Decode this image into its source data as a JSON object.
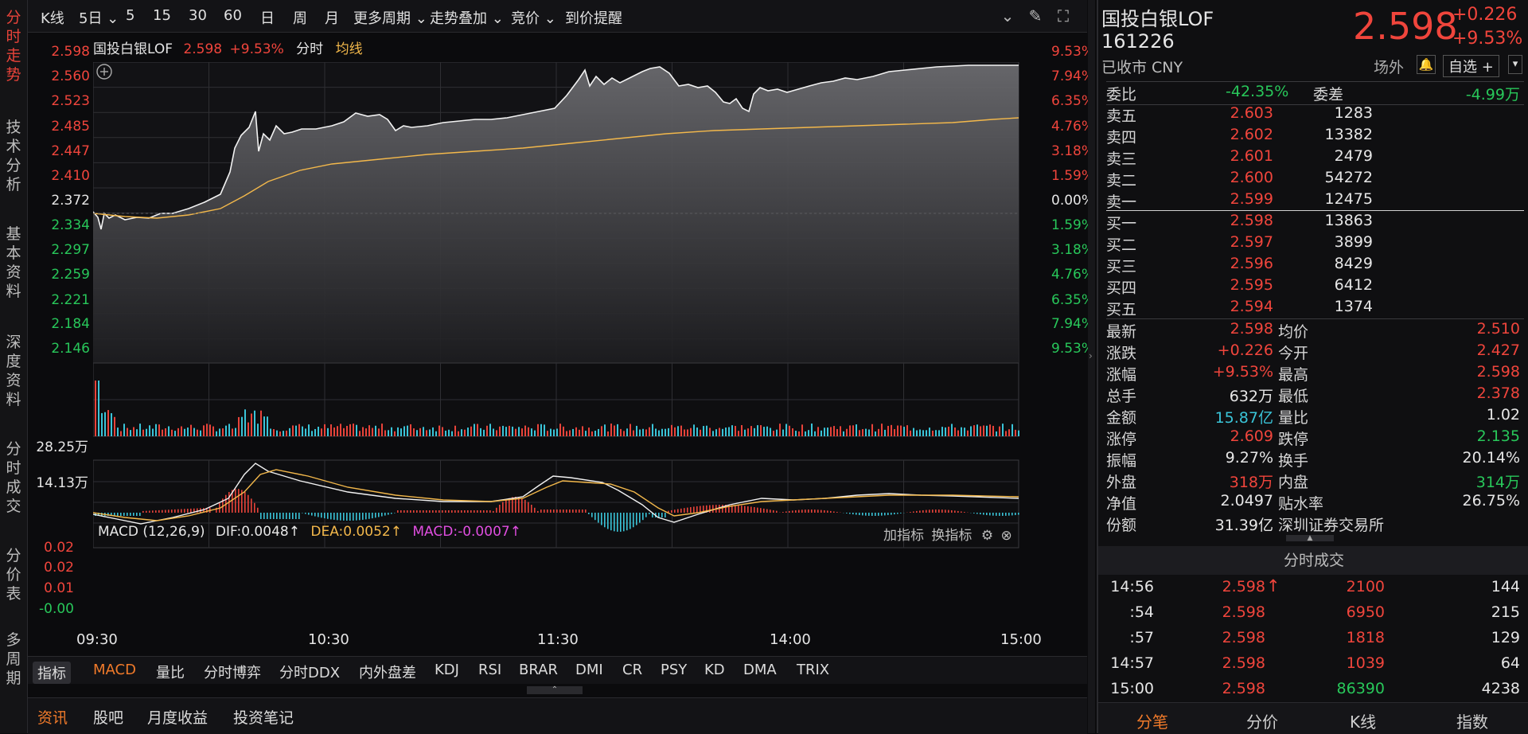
{
  "left_nav": [
    {
      "label": "分\n时\n走\n势",
      "active": true
    },
    {
      "label": "技\n术\n分\n析",
      "active": false
    },
    {
      "label": "基\n本\n资\n料",
      "active": false
    },
    {
      "label": "深\n度\n资\n料",
      "active": false
    },
    {
      "label": "分\n时\n成\n交",
      "active": false
    },
    {
      "label": "分\n价\n表",
      "active": false
    },
    {
      "label": "多\n周\n期",
      "active": false
    }
  ],
  "toolbar": {
    "items": [
      "K线",
      "5日",
      "5",
      "15",
      "30",
      "60",
      "日",
      "周",
      "月",
      "更多周期",
      "走势叠加",
      "竞价",
      "到价提醒"
    ]
  },
  "chart_header": {
    "name": "国投白银LOF",
    "price": "2.598",
    "change_pct": "+9.53%",
    "mode": "分时",
    "avg_label": "均线"
  },
  "price_axis": {
    "left": [
      "2.598",
      "2.560",
      "2.523",
      "2.485",
      "2.447",
      "2.410",
      "2.372",
      "2.334",
      "2.297",
      "2.259",
      "2.221",
      "2.184",
      "2.146"
    ],
    "right": [
      "9.53%",
      "7.94%",
      "6.35%",
      "4.76%",
      "3.18%",
      "1.59%",
      "0.00%",
      "1.59%",
      "3.18%",
      "4.76%",
      "6.35%",
      "7.94%",
      "9.53%"
    ]
  },
  "volume_axis": [
    "28.25万",
    "14.13万"
  ],
  "macd_header": {
    "label": "MACD (12,26,9)",
    "dif": "DIF:0.0048",
    "dea": "DEA:0.0052",
    "macd": "MACD:-0.0007",
    "add": "加指标",
    "swap": "换指标"
  },
  "macd_axis": [
    "0.02",
    "0.02",
    "0.01",
    "-0.00"
  ],
  "time_axis": [
    "09:30",
    "10:30",
    "11:30",
    "14:00",
    "15:00"
  ],
  "indicators": [
    "指标",
    "MACD",
    "量比",
    "分时博弈",
    "分时DDX",
    "内外盘差",
    "KDJ",
    "RSI",
    "BRAR",
    "DMI",
    "CR",
    "PSY",
    "KD",
    "DMA",
    "TRIX"
  ],
  "news_tabs": [
    "资讯",
    "股吧",
    "月度收益",
    "投资笔记"
  ],
  "quote": {
    "name": "国投白银LOF",
    "code": "161226",
    "status": "已收市 CNY",
    "price": "2.598",
    "change": "+0.226",
    "change_pct": "+9.53%",
    "market": "场外",
    "watch": "自选 +"
  },
  "order_book": {
    "weibi_label": "委比",
    "weibi": "-42.35%",
    "weicha_label": "委差",
    "weicha": "-4.99万",
    "asks": [
      {
        "label": "卖五",
        "price": "2.603",
        "vol": "1283"
      },
      {
        "label": "卖四",
        "price": "2.602",
        "vol": "13382"
      },
      {
        "label": "卖三",
        "price": "2.601",
        "vol": "2479"
      },
      {
        "label": "卖二",
        "price": "2.600",
        "vol": "54272"
      },
      {
        "label": "卖一",
        "price": "2.599",
        "vol": "12475"
      }
    ],
    "bids": [
      {
        "label": "买一",
        "price": "2.598",
        "vol": "13863"
      },
      {
        "label": "买二",
        "price": "2.597",
        "vol": "3899"
      },
      {
        "label": "买三",
        "price": "2.596",
        "vol": "8429"
      },
      {
        "label": "买四",
        "price": "2.595",
        "vol": "6412"
      },
      {
        "label": "买五",
        "price": "2.594",
        "vol": "1374"
      }
    ]
  },
  "stats": [
    {
      "l1": "最新",
      "v1": "2.598",
      "c1": "red",
      "l2": "均价",
      "v2": "2.510",
      "c2": "red"
    },
    {
      "l1": "涨跌",
      "v1": "+0.226",
      "c1": "red",
      "l2": "今开",
      "v2": "2.427",
      "c2": "red"
    },
    {
      "l1": "涨幅",
      "v1": "+9.53%",
      "c1": "red",
      "l2": "最高",
      "v2": "2.598",
      "c2": "red"
    },
    {
      "l1": "总手",
      "v1": "632万",
      "c1": "white",
      "l2": "最低",
      "v2": "2.378",
      "c2": "red"
    },
    {
      "l1": "金额",
      "v1": "15.87亿",
      "c1": "cyan",
      "l2": "量比",
      "v2": "1.02",
      "c2": "white"
    },
    {
      "l1": "涨停",
      "v1": "2.609",
      "c1": "red",
      "l2": "跌停",
      "v2": "2.135",
      "c2": "green"
    },
    {
      "l1": "振幅",
      "v1": "9.27%",
      "c1": "white",
      "l2": "换手",
      "v2": "20.14%",
      "c2": "white"
    },
    {
      "l1": "外盘",
      "v1": "318万",
      "c1": "red",
      "l2": "内盘",
      "v2": "314万",
      "c2": "green"
    },
    {
      "l1": "净值",
      "v1": "2.0497",
      "c1": "white",
      "l2": "贴水率",
      "v2": "26.75%",
      "c2": "white"
    },
    {
      "l1": "份额",
      "v1": "31.39亿",
      "c1": "white",
      "l2": "深圳证券交易所",
      "v2": "",
      "c2": "white"
    }
  ],
  "ticks_title": "分时成交",
  "ticks": [
    {
      "time": "14:56",
      "price": "2.598",
      "arrow": "↑",
      "vol": "2100",
      "num": "144",
      "vcolor": "red"
    },
    {
      "time": ":54",
      "price": "2.598",
      "arrow": "",
      "vol": "6950",
      "num": "215",
      "vcolor": "red"
    },
    {
      "time": ":57",
      "price": "2.598",
      "arrow": "",
      "vol": "1818",
      "num": "129",
      "vcolor": "red"
    },
    {
      "time": "14:57",
      "price": "2.598",
      "arrow": "",
      "vol": "1039",
      "num": "64",
      "vcolor": "red"
    },
    {
      "time": "15:00",
      "price": "2.598",
      "arrow": "",
      "vol": "86390",
      "num": "4238",
      "vcolor": "green"
    }
  ],
  "bottom_tabs": [
    {
      "label": "分笔",
      "active": true
    },
    {
      "label": "分价",
      "active": false
    },
    {
      "label": "K线",
      "active": false
    },
    {
      "label": "指数",
      "active": false
    }
  ]
}
